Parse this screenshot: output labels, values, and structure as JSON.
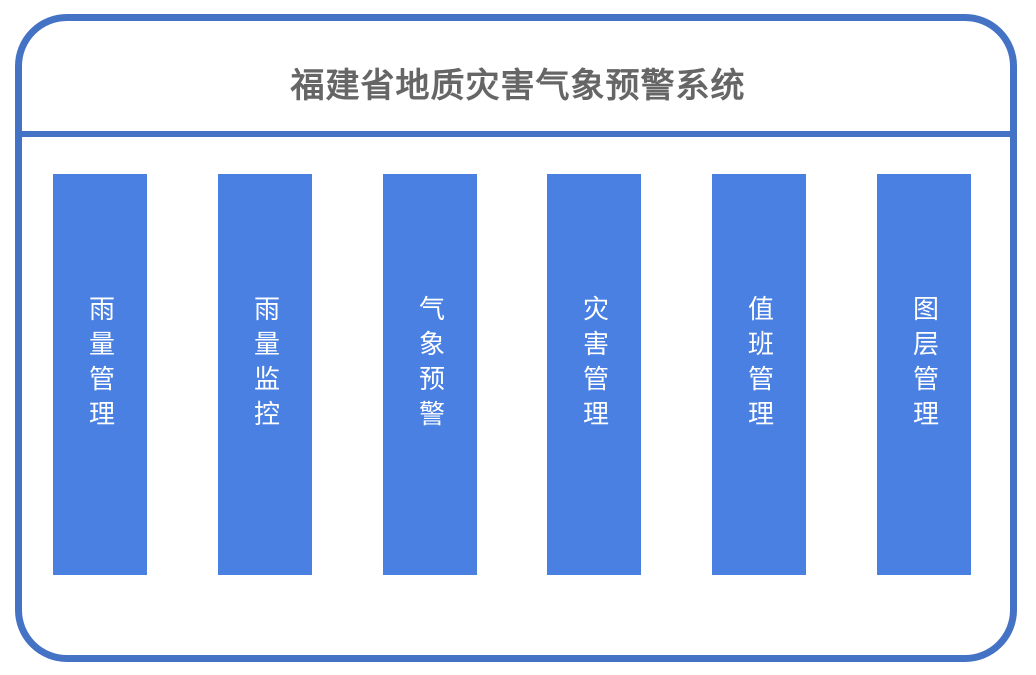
{
  "title": "福建省地质灾害气象预警系统",
  "modules": [
    {
      "label": "雨量管理"
    },
    {
      "label": "雨量监控"
    },
    {
      "label": "气象预警"
    },
    {
      "label": "灾害管理"
    },
    {
      "label": "值班管理"
    },
    {
      "label": "图层管理"
    }
  ],
  "colors": {
    "border": "#4472C4",
    "module": "#4A80E2",
    "title": "#666666"
  }
}
